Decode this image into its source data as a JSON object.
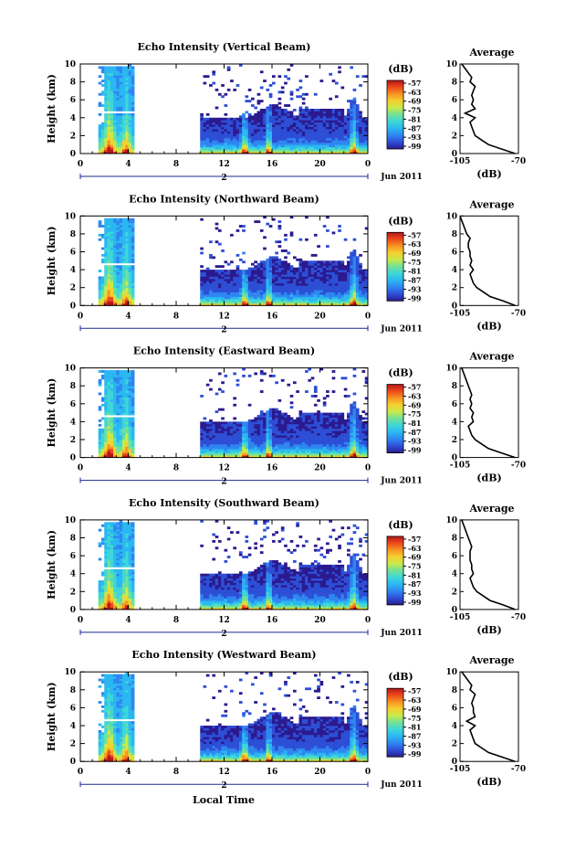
{
  "figure": {
    "x_label": "Local Time",
    "date_label": "Jun 2011",
    "day_marker": "2",
    "colorbar_unit": "(dB)",
    "colorbar_ticks": [
      "-57",
      "-63",
      "-69",
      "-75",
      "-81",
      "-87",
      "-93",
      "-99"
    ],
    "colorscale": [
      "#2b1a8f",
      "#2d4fd6",
      "#2f86f0",
      "#2bb7f2",
      "#3fd6d8",
      "#6fe19a",
      "#c7ea4a",
      "#f4d130",
      "#f89522",
      "#ec4a1b",
      "#b8151a"
    ],
    "avg_title": "Average",
    "avg_xlabel": "(dB)",
    "avg_xticks": [
      "-105",
      "-70"
    ]
  },
  "chart_data": [
    {
      "type": "heatmap",
      "title": "Echo Intensity (Vertical Beam)",
      "ylabel": "Height (km)",
      "xlabel": "Local Time",
      "x_ticks": [
        "0",
        "4",
        "8",
        "12",
        "16",
        "20",
        "0"
      ],
      "y_ticks": [
        "0",
        "2",
        "4",
        "6",
        "8",
        "10"
      ],
      "xlim": [
        0,
        24
      ],
      "ylim": [
        0,
        10
      ],
      "colorbar": {
        "label": "(dB)",
        "range": [
          -99,
          -57
        ]
      },
      "average_profile": {
        "title": "Average",
        "xlabel": "(dB)",
        "xlim": [
          -105,
          -70
        ],
        "height": [
          0,
          0.5,
          1,
          1.5,
          2,
          2.5,
          3,
          3.5,
          4,
          4.5,
          5,
          5.5,
          6,
          6.5,
          7,
          7.5,
          8,
          8.5,
          9,
          9.5,
          10
        ],
        "values": [
          -72,
          -80,
          -88,
          -92,
          -96,
          -97,
          -98,
          -99,
          -96,
          -102,
          -96,
          -98,
          -97,
          -98,
          -97,
          -96,
          -99,
          -98,
          -100,
          -102,
          -104
        ]
      }
    },
    {
      "type": "heatmap",
      "title": "Echo Intensity (Northward Beam)",
      "ylabel": "Height (km)",
      "xlabel": "Local Time",
      "x_ticks": [
        "0",
        "4",
        "8",
        "12",
        "16",
        "20",
        "0"
      ],
      "y_ticks": [
        "0",
        "2",
        "4",
        "6",
        "8",
        "10"
      ],
      "xlim": [
        0,
        24
      ],
      "ylim": [
        0,
        10
      ],
      "colorbar": {
        "label": "(dB)",
        "range": [
          -99,
          -57
        ]
      },
      "average_profile": {
        "title": "Average",
        "xlabel": "(dB)",
        "xlim": [
          -105,
          -70
        ],
        "height": [
          0,
          0.5,
          1,
          1.5,
          2,
          2.5,
          3,
          3.5,
          4,
          4.5,
          5,
          5.5,
          6,
          6.5,
          7,
          7.5,
          8,
          8.5,
          9,
          9.5,
          10
        ],
        "values": [
          -72,
          -79,
          -87,
          -91,
          -95,
          -97,
          -98,
          -99,
          -97,
          -99,
          -98,
          -99,
          -99,
          -100,
          -100,
          -99,
          -101,
          -102,
          -103,
          -104,
          -105
        ]
      }
    },
    {
      "type": "heatmap",
      "title": "Echo Intensity (Eastward Beam)",
      "ylabel": "Height (km)",
      "xlabel": "Local Time",
      "x_ticks": [
        "0",
        "4",
        "8",
        "12",
        "16",
        "20",
        "0"
      ],
      "y_ticks": [
        "0",
        "2",
        "4",
        "6",
        "8",
        "10"
      ],
      "xlim": [
        0,
        24
      ],
      "ylim": [
        0,
        10
      ],
      "colorbar": {
        "label": "(dB)",
        "range": [
          -99,
          -57
        ]
      },
      "average_profile": {
        "title": "Average",
        "xlabel": "(dB)",
        "xlim": [
          -105,
          -70
        ],
        "height": [
          0,
          0.5,
          1,
          1.5,
          2,
          2.5,
          3,
          3.5,
          4,
          4.5,
          5,
          5.5,
          6,
          6.5,
          7,
          7.5,
          8,
          8.5,
          9,
          9.5,
          10
        ],
        "values": [
          -72,
          -80,
          -88,
          -92,
          -96,
          -98,
          -99,
          -100,
          -97,
          -98,
          -97,
          -99,
          -98,
          -99,
          -98,
          -99,
          -100,
          -101,
          -102,
          -103,
          -104
        ]
      }
    },
    {
      "type": "heatmap",
      "title": "Echo Intensity (Southward Beam)",
      "ylabel": "Height (km)",
      "xlabel": "Local Time",
      "x_ticks": [
        "0",
        "4",
        "8",
        "12",
        "16",
        "20",
        "0"
      ],
      "y_ticks": [
        "0",
        "2",
        "4",
        "6",
        "8",
        "10"
      ],
      "xlim": [
        0,
        24
      ],
      "ylim": [
        0,
        10
      ],
      "colorbar": {
        "label": "(dB)",
        "range": [
          -99,
          -57
        ]
      },
      "average_profile": {
        "title": "Average",
        "xlabel": "(dB)",
        "xlim": [
          -105,
          -70
        ],
        "height": [
          0,
          0.5,
          1,
          1.5,
          2,
          2.5,
          3,
          3.5,
          4,
          4.5,
          5,
          5.5,
          6,
          6.5,
          7,
          7.5,
          8,
          8.5,
          9,
          9.5,
          10
        ],
        "values": [
          -72,
          -79,
          -87,
          -91,
          -95,
          -97,
          -98,
          -99,
          -97,
          -98,
          -98,
          -99,
          -99,
          -99,
          -98,
          -99,
          -100,
          -101,
          -102,
          -103,
          -104
        ]
      }
    },
    {
      "type": "heatmap",
      "title": "Echo Intensity (Westward Beam)",
      "ylabel": "Height (km)",
      "xlabel": "Local Time",
      "x_ticks": [
        "0",
        "4",
        "8",
        "12",
        "16",
        "20",
        "0"
      ],
      "y_ticks": [
        "0",
        "2",
        "4",
        "6",
        "8",
        "10"
      ],
      "xlim": [
        0,
        24
      ],
      "ylim": [
        0,
        10
      ],
      "colorbar": {
        "label": "(dB)",
        "range": [
          -99,
          -57
        ]
      },
      "average_profile": {
        "title": "Average",
        "xlabel": "(dB)",
        "xlim": [
          -105,
          -70
        ],
        "height": [
          0,
          0.5,
          1,
          1.5,
          2,
          2.5,
          3,
          3.5,
          4,
          4.5,
          5,
          5.5,
          6,
          6.5,
          7,
          7.5,
          8,
          8.5,
          9,
          9.5,
          10
        ],
        "values": [
          -72,
          -80,
          -88,
          -92,
          -96,
          -97,
          -98,
          -99,
          -96,
          -101,
          -96,
          -97,
          -97,
          -98,
          -97,
          -96,
          -99,
          -98,
          -100,
          -102,
          -104
        ]
      }
    }
  ]
}
